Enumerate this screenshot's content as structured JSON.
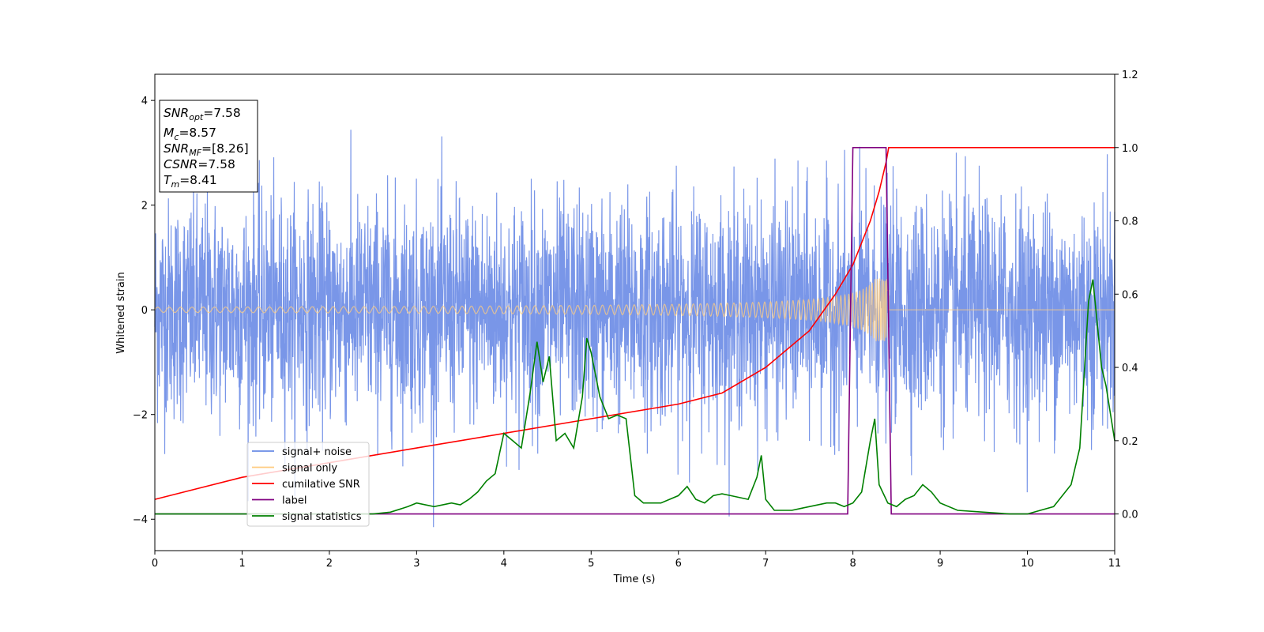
{
  "chart_data": {
    "type": "line",
    "xlabel": "Time (s)",
    "ylabel": "Whitened strain",
    "xlim": [
      0,
      11
    ],
    "ylim": [
      -4.6,
      4.5
    ],
    "y2lim": [
      -0.1,
      1.2
    ],
    "xticks": [
      "0",
      "1",
      "2",
      "3",
      "4",
      "5",
      "6",
      "7",
      "8",
      "9",
      "10",
      "11"
    ],
    "yticks": [
      "−4",
      "−2",
      "0",
      "2",
      "4"
    ],
    "y2ticks": [
      "0.0",
      "0.2",
      "0.4",
      "0.6",
      "0.8",
      "1.0",
      "1.2"
    ],
    "annotation": {
      "snr_opt": {
        "name": "SNR",
        "sub": "opt",
        "value": "=7.58"
      },
      "mc": {
        "name": "M",
        "sub": "c",
        "value": "=8.57"
      },
      "snr_mf": {
        "name": "SNR",
        "sub": "MF",
        "value": "=[8.26]"
      },
      "csnr": {
        "name": "CSNR",
        "sub": "",
        "value": "=7.58"
      },
      "tm": {
        "name": "T",
        "sub": "m",
        "value": "=8.41"
      }
    },
    "legend_position": "lower-left",
    "series": [
      {
        "name": "signal+ noise",
        "color": "#6a8be6",
        "axis": "left",
        "description": "whitened noisy strain, amplitude about ±2.5 with spikes to ±4"
      },
      {
        "name": "signal only",
        "color": "#ffcc80",
        "axis": "left",
        "description": "chirp growing from ~0.05 at t=0 to ~0.6 at t=8.41, zero after"
      },
      {
        "name": "cumilative SNR",
        "color": "#ff0000",
        "axis": "right",
        "x": [
          0,
          1,
          2,
          3,
          4,
          5,
          6,
          6.5,
          7,
          7.5,
          7.8,
          8.0,
          8.2,
          8.3,
          8.38,
          8.41,
          11
        ],
        "y": [
          0.04,
          0.1,
          0.14,
          0.18,
          0.22,
          0.26,
          0.3,
          0.33,
          0.4,
          0.5,
          0.6,
          0.68,
          0.8,
          0.88,
          0.96,
          1.0,
          1.0
        ]
      },
      {
        "name": "label",
        "color": "#800080",
        "axis": "right",
        "x": [
          0,
          7.94,
          8.0,
          8.38,
          8.44,
          11
        ],
        "y": [
          0,
          0,
          1,
          1,
          0,
          0
        ]
      },
      {
        "name": "signal statistics",
        "color": "#008000",
        "axis": "right",
        "x": [
          0,
          0.3,
          0.6,
          1.0,
          1.5,
          2.0,
          2.5,
          2.7,
          2.9,
          3.0,
          3.2,
          3.4,
          3.5,
          3.6,
          3.7,
          3.8,
          3.9,
          4.0,
          4.1,
          4.2,
          4.3,
          4.38,
          4.45,
          4.52,
          4.6,
          4.7,
          4.8,
          4.9,
          4.95,
          5.0,
          5.1,
          5.2,
          5.3,
          5.4,
          5.5,
          5.6,
          5.8,
          6.0,
          6.1,
          6.2,
          6.3,
          6.4,
          6.5,
          6.6,
          6.8,
          6.9,
          6.95,
          7.0,
          7.1,
          7.3,
          7.5,
          7.7,
          7.8,
          7.9,
          8.0,
          8.1,
          8.2,
          8.25,
          8.3,
          8.4,
          8.5,
          8.6,
          8.7,
          8.8,
          8.9,
          9.0,
          9.2,
          9.5,
          9.8,
          10.0,
          10.3,
          10.5,
          10.6,
          10.7,
          10.75,
          10.85,
          10.9,
          11.0
        ],
        "y": [
          0.0,
          0.0,
          0.0,
          0.0,
          0.0,
          0.0,
          0.0,
          0.005,
          0.02,
          0.03,
          0.02,
          0.03,
          0.025,
          0.04,
          0.06,
          0.09,
          0.11,
          0.22,
          0.2,
          0.18,
          0.33,
          0.47,
          0.36,
          0.43,
          0.2,
          0.22,
          0.18,
          0.32,
          0.48,
          0.44,
          0.32,
          0.26,
          0.27,
          0.26,
          0.05,
          0.03,
          0.03,
          0.05,
          0.075,
          0.04,
          0.03,
          0.05,
          0.055,
          0.05,
          0.04,
          0.1,
          0.16,
          0.04,
          0.01,
          0.01,
          0.02,
          0.03,
          0.03,
          0.02,
          0.03,
          0.06,
          0.2,
          0.26,
          0.08,
          0.03,
          0.02,
          0.04,
          0.05,
          0.08,
          0.06,
          0.03,
          0.01,
          0.005,
          0.0,
          0.0,
          0.02,
          0.08,
          0.18,
          0.58,
          0.64,
          0.4,
          0.35,
          0.2
        ]
      }
    ]
  }
}
